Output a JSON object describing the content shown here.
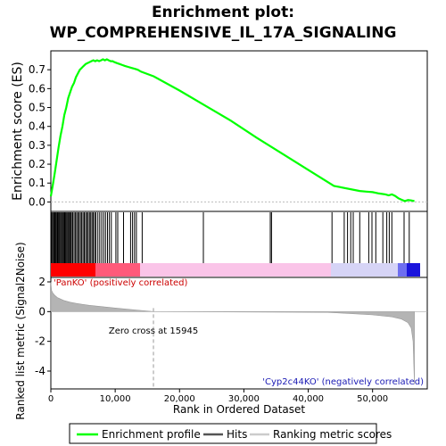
{
  "chart_data": {
    "type": "line",
    "title_line1": "Enrichment plot:",
    "title_line2": "WP_COMPREHENSIVE_IL_17A_SIGNALING",
    "es_panel": {
      "ylabel": "Enrichment score (ES)",
      "ylim": [
        -0.05,
        0.8
      ],
      "yticks": [
        "0.0",
        "0.1",
        "0.2",
        "0.3",
        "0.4",
        "0.5",
        "0.6",
        "0.7"
      ],
      "color": "#00ff00",
      "x": [
        0,
        300,
        600,
        900,
        1200,
        1500,
        1800,
        2100,
        2400,
        2700,
        3000,
        3300,
        3600,
        3900,
        4200,
        4500,
        4800,
        5100,
        5400,
        5700,
        6000,
        6300,
        6600,
        6900,
        7200,
        7500,
        7800,
        8100,
        8400,
        8700,
        9000,
        9300,
        9600,
        9900,
        10300,
        10700,
        11100,
        11500,
        12000,
        12500,
        13000,
        13500,
        14000,
        16000,
        20000,
        24000,
        28000,
        32000,
        36000,
        40000,
        44000,
        48000,
        49000,
        50000,
        51000,
        52000,
        52500,
        53000,
        53500,
        54000,
        54500,
        55000,
        55500,
        56000,
        56500
      ],
      "y": [
        0.03,
        0.09,
        0.15,
        0.22,
        0.29,
        0.35,
        0.4,
        0.46,
        0.5,
        0.55,
        0.58,
        0.61,
        0.63,
        0.66,
        0.68,
        0.7,
        0.71,
        0.72,
        0.73,
        0.735,
        0.74,
        0.745,
        0.75,
        0.745,
        0.75,
        0.745,
        0.75,
        0.755,
        0.75,
        0.755,
        0.75,
        0.745,
        0.745,
        0.74,
        0.735,
        0.73,
        0.725,
        0.72,
        0.715,
        0.71,
        0.705,
        0.7,
        0.69,
        0.665,
        0.59,
        0.51,
        0.43,
        0.34,
        0.255,
        0.17,
        0.085,
        0.058,
        0.055,
        0.052,
        0.045,
        0.04,
        0.035,
        0.04,
        0.032,
        0.02,
        0.012,
        0.005,
        0.01,
        0.008,
        0.005
      ]
    },
    "hits_panel": {
      "hit_positions": [
        100,
        250,
        400,
        550,
        700,
        850,
        1000,
        1100,
        1250,
        1400,
        1550,
        1700,
        1850,
        2000,
        2150,
        2300,
        2450,
        2600,
        2750,
        2900,
        3050,
        3200,
        3400,
        3600,
        3800,
        4000,
        4200,
        4400,
        4600,
        4800,
        5000,
        5200,
        5400,
        5600,
        5800,
        6000,
        6200,
        6400,
        6600,
        6800,
        7000,
        7300,
        7600,
        7900,
        8200,
        8500,
        8800,
        9100,
        9400,
        10100,
        10400,
        11300,
        12400,
        12700,
        13000,
        13300,
        14200,
        23700,
        34100,
        34300,
        43700,
        45600,
        46100,
        46600,
        47000,
        48000,
        49400,
        49900,
        50500,
        51600,
        52200,
        52600,
        53000,
        54900,
        55700
      ]
    },
    "metric_panel": {
      "ylabel": "Ranked list metric (Signal2Noise)",
      "ylim": [
        -5.2,
        2.3
      ],
      "yticks": [
        "2",
        "0",
        "-2",
        "-4"
      ],
      "pos_label": "'PanKO' (positively correlated)",
      "neg_label": "'Cyp2c44KO' (negatively correlated)",
      "zero_cross_label": "Zero cross at 15945",
      "zero_cross": 15945,
      "profile_x": [
        0,
        100,
        300,
        600,
        1000,
        1500,
        2000,
        3000,
        4000,
        5000,
        6000,
        8000,
        10000,
        12000,
        14000,
        15945,
        43000,
        46000,
        50000,
        53000,
        54500,
        55500,
        56000,
        56300,
        56500
      ],
      "profile_y": [
        2.0,
        1.45,
        1.25,
        1.1,
        0.95,
        0.85,
        0.75,
        0.63,
        0.55,
        0.48,
        0.42,
        0.33,
        0.24,
        0.16,
        0.08,
        0.0,
        -0.05,
        -0.12,
        -0.22,
        -0.35,
        -0.5,
        -0.75,
        -1.1,
        -2.0,
        -4.9
      ]
    },
    "xlabel": "Rank in Ordered Dataset",
    "xlim": [
      0,
      58500
    ],
    "xticks": [
      "0",
      "10,000",
      "20,000",
      "30,000",
      "40,000",
      "50,000"
    ],
    "legend": [
      "Enrichment profile",
      "Hits",
      "Ranking metric scores"
    ]
  }
}
